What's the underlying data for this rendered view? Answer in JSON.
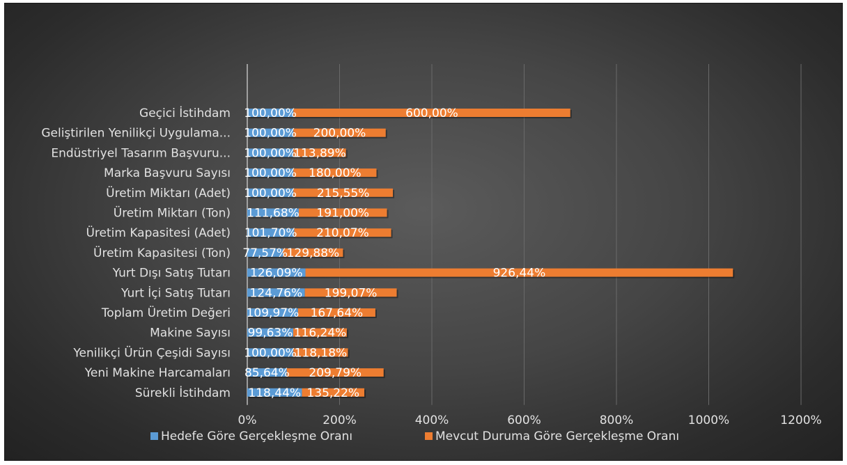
{
  "chart_data": {
    "type": "bar",
    "orientation": "horizontal",
    "categories": [
      "Geçici İstihdam",
      "Geliştirilen Yenilikçi Uygulama...",
      "Endüstriyel Tasarım Başvuru...",
      "Marka Başvuru Sayısı",
      "Üretim Miktarı (Adet)",
      "Üretim Miktarı (Ton)",
      "Üretim Kapasitesi (Adet)",
      "Üretim Kapasitesi (Ton)",
      "Yurt Dışı Satış Tutarı",
      "Yurt İçi Satış Tutarı",
      "Toplam Üretim Değeri",
      "Makine Sayısı",
      "Yenilikçi Ürün Çeşidi Sayısı",
      "Yeni Makine Harcamaları",
      "Sürekli İstihdam"
    ],
    "series": [
      {
        "name": "Hedefe Göre Gerçekleşme Oranı",
        "color": "#5b9bd5",
        "values": [
          100.0,
          100.0,
          100.0,
          100.0,
          100.0,
          111.68,
          101.7,
          77.57,
          126.09,
          124.76,
          109.97,
          99.63,
          100.0,
          85.64,
          118.44
        ],
        "labels": [
          "100,00%",
          "100,00%",
          "100,00%",
          "100,00%",
          "100,00%",
          "111,68%",
          "101,70%",
          "77,57%",
          "126,09%",
          "124,76%",
          "109,97%",
          "99,63%",
          "100,00%",
          "85,64%",
          "118,44%"
        ]
      },
      {
        "name": "Mevcut Duruma Göre Gerçekleşme Oranı",
        "color": "#ed7d31",
        "values": [
          600.0,
          200.0,
          113.89,
          180.0,
          215.55,
          191.0,
          210.07,
          129.88,
          926.44,
          199.07,
          167.64,
          116.24,
          118.18,
          209.79,
          135.22
        ],
        "labels": [
          "600,00%",
          "200,00%",
          "113,89%",
          "180,00%",
          "215,55%",
          "191,00%",
          "210,07%",
          "129,88%",
          "926,44%",
          "199,07%",
          "167,64%",
          "116,24%",
          "118,18%",
          "209,79%",
          "135,22%"
        ]
      }
    ],
    "stacked": true,
    "xlim": [
      0,
      1200
    ],
    "x_ticks": [
      0,
      200,
      400,
      600,
      800,
      1000,
      1200
    ],
    "x_tick_labels": [
      "0%",
      "200%",
      "400%",
      "600%",
      "800%",
      "1000%",
      "1200%"
    ],
    "grid": true,
    "legend_position": "bottom",
    "title": "",
    "xlabel": "",
    "ylabel": ""
  }
}
